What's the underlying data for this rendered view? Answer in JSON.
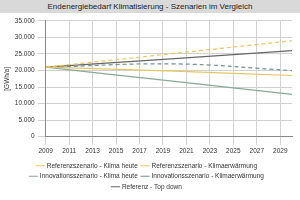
{
  "chart_data": {
    "type": "line",
    "title": "Endenergiebedarf Klimatisierung - Szenarien im Vergleich",
    "y_label": "[GWh/a]",
    "x": [
      2009,
      2020,
      2030
    ],
    "series": [
      {
        "name": "Referenzszenario - Klima heute",
        "color": "#e6c766",
        "line_style": "solid",
        "values": [
          21000,
          19800,
          18500
        ]
      },
      {
        "name": "Referenzszenario - Klimaerwärmung",
        "color": "#efc35a",
        "line_style": "dashed",
        "values": [
          21000,
          25200,
          29000
        ]
      },
      {
        "name": "Innovationsszenario - Klima heute",
        "color": "#8aa898",
        "line_style": "solid",
        "values": [
          21000,
          16700,
          12800
        ]
      },
      {
        "name": "Innovationsszenario - Klimaerwärmung",
        "color": "#6f909c",
        "line_style": "dashed",
        "values": [
          21000,
          22000,
          20000
        ]
      },
      {
        "name": "Referenz - Top down",
        "color": "#666666",
        "line_style": "solid",
        "values": [
          21000,
          23600,
          26000
        ]
      }
    ],
    "xlim": [
      2009,
      2030
    ],
    "xticks": [
      2009,
      2011,
      2013,
      2015,
      2017,
      2019,
      2021,
      2023,
      2025,
      2027,
      2029
    ],
    "ylim": [
      0,
      35000
    ],
    "yticks": [
      0,
      {
        "value": 5000,
        "label": "5.000"
      },
      {
        "value": 10000,
        "label": "10.000"
      },
      {
        "value": 15000,
        "label": "15.000"
      },
      {
        "value": 20000,
        "label": "20.000"
      },
      {
        "value": 25000,
        "label": "25.000"
      },
      {
        "value": 30000,
        "label": "30.000"
      },
      {
        "value": 35000,
        "label": "35.000"
      }
    ],
    "grid": true,
    "legend": "bottom"
  }
}
